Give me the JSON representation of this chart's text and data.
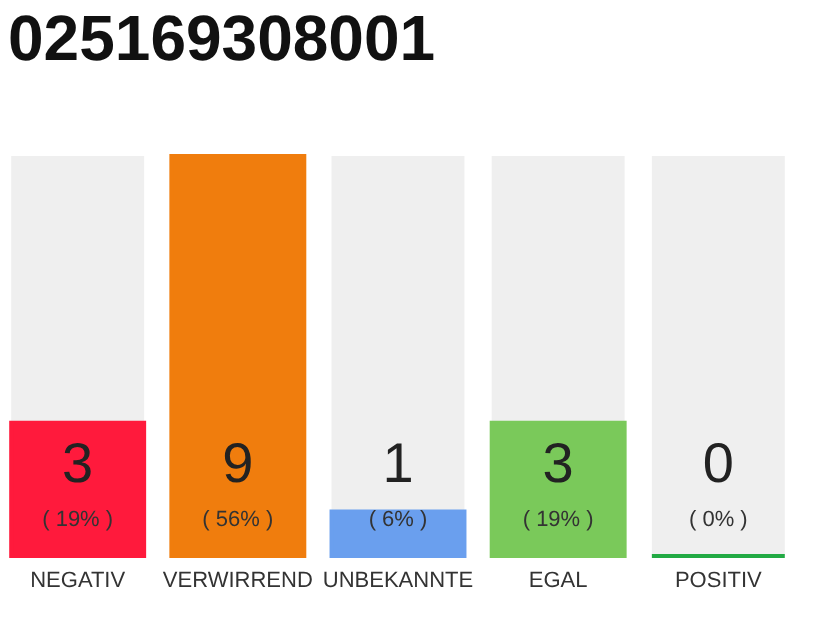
{
  "chart_data": {
    "type": "bar",
    "title": "025169308001",
    "categories": [
      "NEGATIV",
      "VERWIRREND",
      "UNBEKANNTE",
      "EGAL",
      "POSITIV"
    ],
    "values": [
      3,
      9,
      1,
      3,
      0
    ],
    "colors": [
      "#ff1a3c",
      "#f07d0d",
      "#6a9fee",
      "#7ac95a",
      "#22aa44"
    ],
    "data_labels": true,
    "annotations": [
      "( 19% )",
      "( 56% )",
      "( 6% )",
      "( 19% )",
      "( 0% )"
    ],
    "tick_labels": "x"
  }
}
